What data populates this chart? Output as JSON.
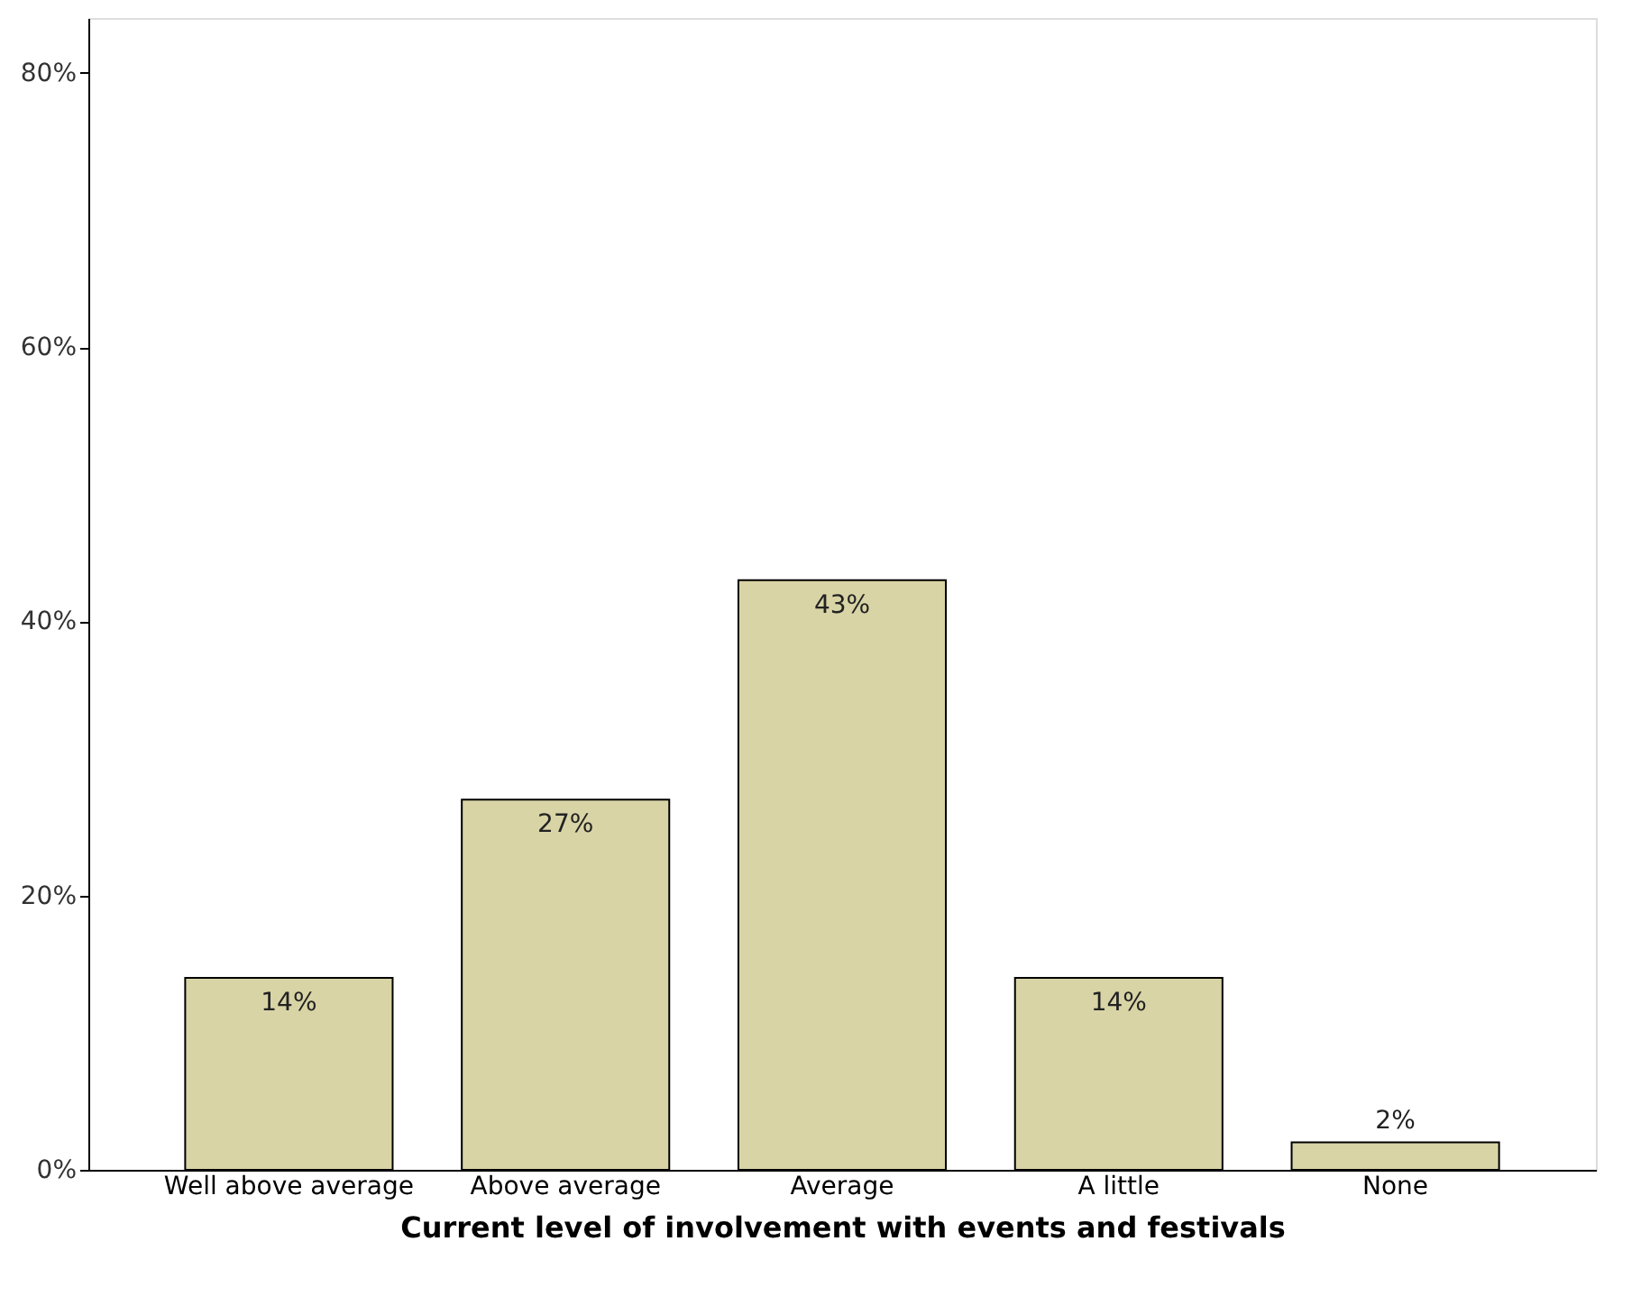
{
  "chart_data": {
    "type": "bar",
    "xlabel": "Current level of involvement with events and festivals",
    "categories": [
      "Well above average",
      "Above average",
      "Average",
      "A little",
      "None"
    ],
    "values": [
      14,
      27,
      43,
      14,
      2
    ],
    "color": "#d9d4a6",
    "value_labels": [
      "14%",
      "27%",
      "43%",
      "14%",
      "2%"
    ],
    "ylim": [
      0,
      84
    ],
    "yticks": [
      {
        "value": 0,
        "label": "0%"
      },
      {
        "value": 20,
        "label": "20%"
      },
      {
        "value": 40,
        "label": "40%"
      },
      {
        "value": 60,
        "label": "60%"
      },
      {
        "value": 80,
        "label": "80%"
      }
    ],
    "grid": false
  }
}
